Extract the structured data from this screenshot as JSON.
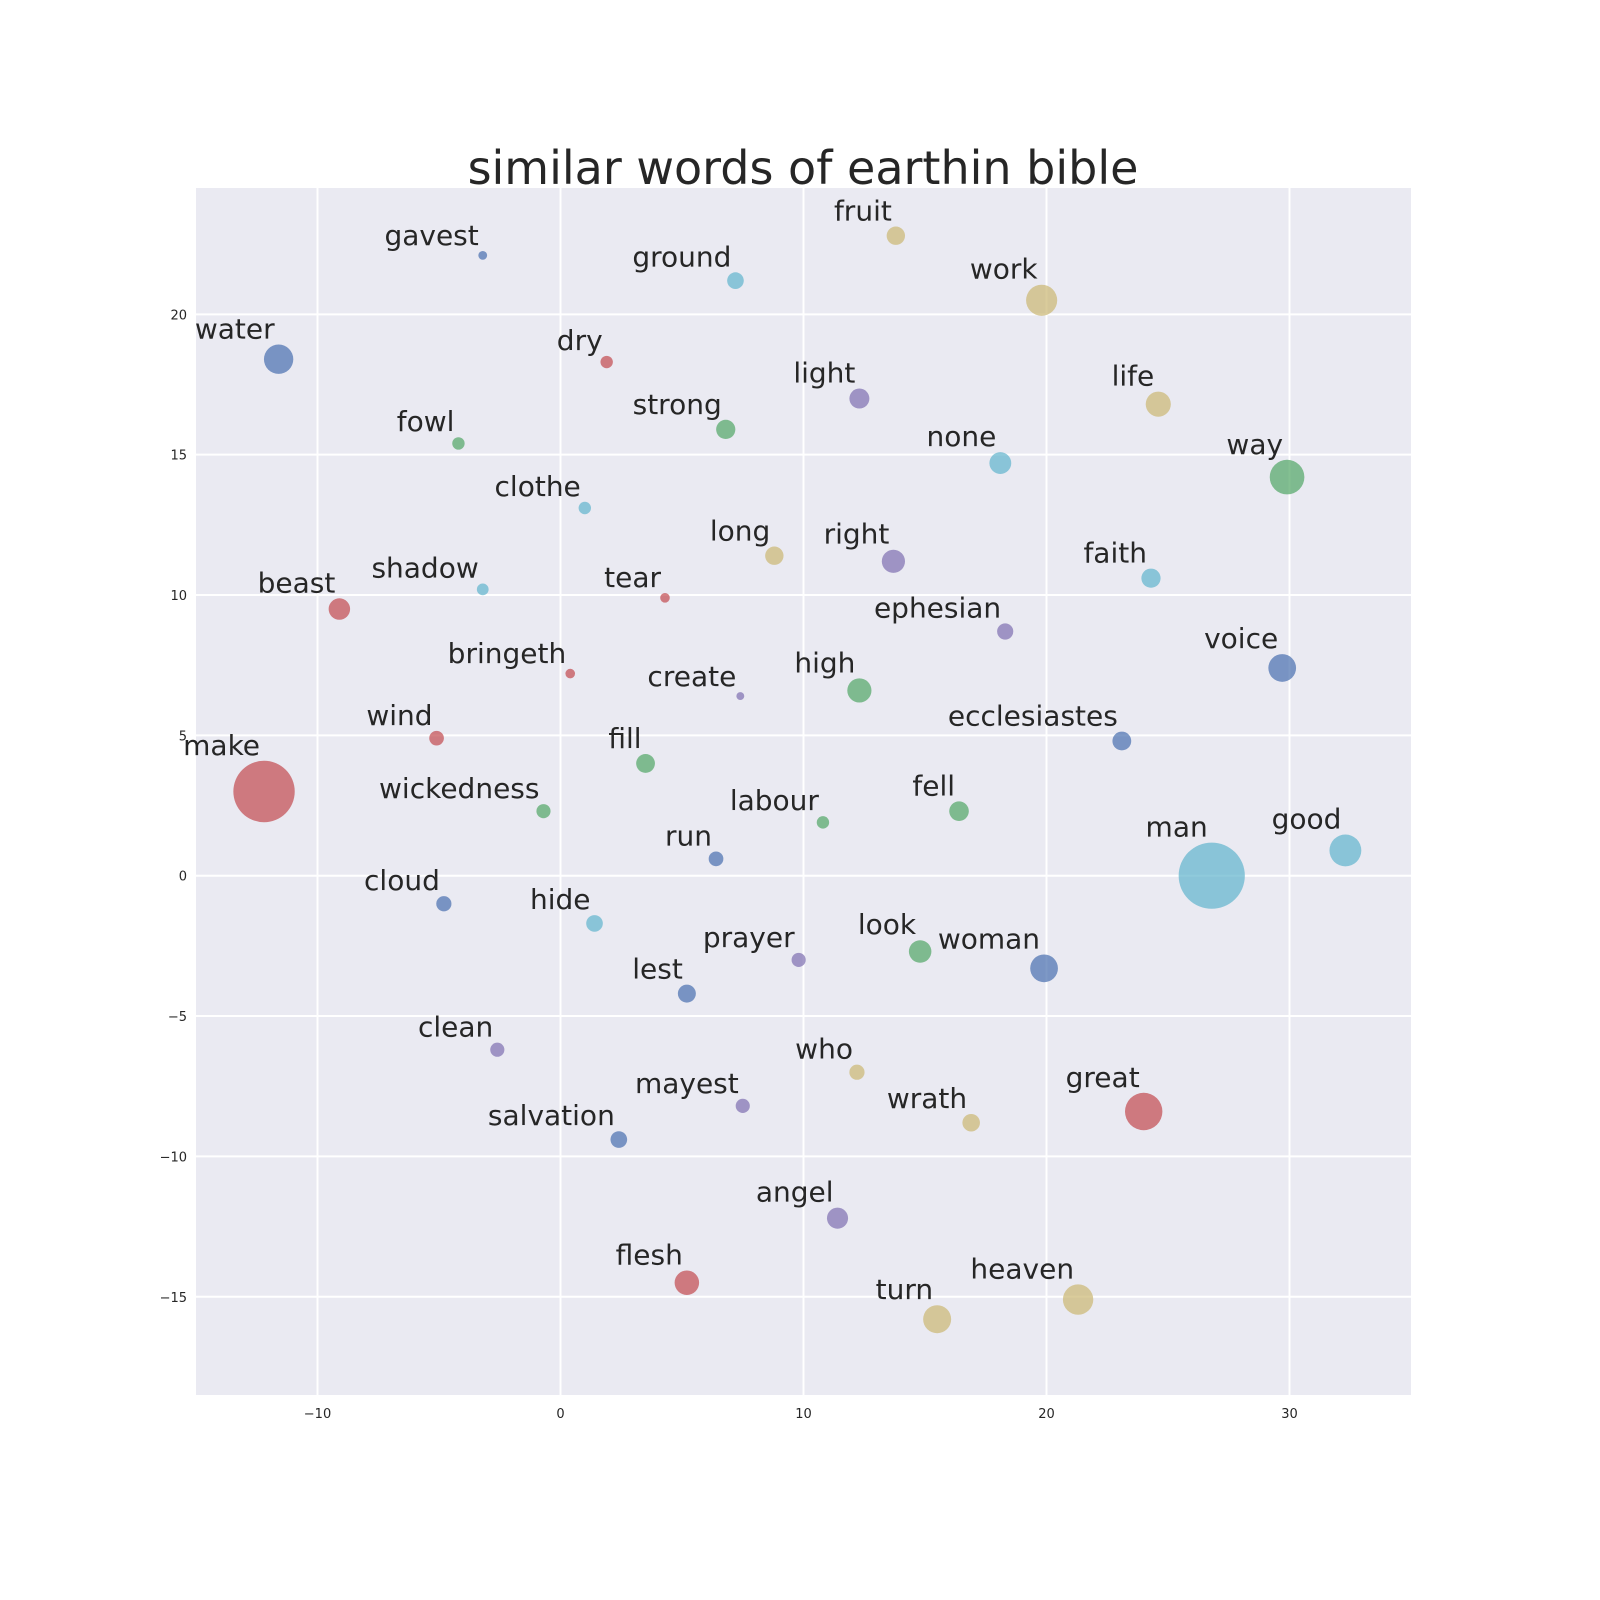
{
  "chart_data": {
    "type": "scatter",
    "title": "similar words of earthin bible",
    "xlabel": "",
    "ylabel": "",
    "xlim": [
      -15,
      35
    ],
    "ylim": [
      -18.5,
      24.5
    ],
    "xticks": [
      -10,
      0,
      10,
      20,
      30
    ],
    "yticks": [
      -15,
      -10,
      -5,
      0,
      5,
      10,
      15,
      20
    ],
    "xtick_labels": [
      "−10",
      "0",
      "10",
      "20",
      "30"
    ],
    "ytick_labels": [
      "−15",
      "−10",
      "−5",
      "0",
      "5",
      "10",
      "15",
      "20"
    ],
    "grid": true,
    "legend": "none",
    "colors": {
      "background": "#eaeaf2",
      "grid": "#ffffff",
      "blue": "#4c72b0",
      "green": "#55a868",
      "red": "#c44e52",
      "purple": "#8172b2",
      "yellow": "#ccb974",
      "cyan": "#64b5cd"
    },
    "points": [
      {
        "label": "gavest",
        "x": -3.2,
        "y": 22.1,
        "size": 0.5,
        "color": "blue"
      },
      {
        "label": "ground",
        "x": 7.2,
        "y": 21.2,
        "size": 1.8,
        "color": "cyan"
      },
      {
        "label": "fruit",
        "x": 13.8,
        "y": 22.8,
        "size": 2.2,
        "color": "yellow"
      },
      {
        "label": "work",
        "x": 19.8,
        "y": 20.5,
        "size": 6.3,
        "color": "yellow"
      },
      {
        "label": "water",
        "x": -11.6,
        "y": 18.4,
        "size": 5.6,
        "color": "blue"
      },
      {
        "label": "dry",
        "x": 1.9,
        "y": 18.3,
        "size": 1.0,
        "color": "red"
      },
      {
        "label": "light",
        "x": 12.3,
        "y": 17.0,
        "size": 2.6,
        "color": "purple"
      },
      {
        "label": "life",
        "x": 24.6,
        "y": 16.8,
        "size": 4.1,
        "color": "yellow"
      },
      {
        "label": "fowl",
        "x": -4.2,
        "y": 15.4,
        "size": 1.0,
        "color": "green"
      },
      {
        "label": "strong",
        "x": 6.8,
        "y": 15.9,
        "size": 2.4,
        "color": "green"
      },
      {
        "label": "none",
        "x": 18.1,
        "y": 14.7,
        "size": 3.1,
        "color": "cyan"
      },
      {
        "label": "way",
        "x": 29.9,
        "y": 14.2,
        "size": 7.8,
        "color": "green"
      },
      {
        "label": "clothe",
        "x": 1.0,
        "y": 13.1,
        "size": 1.0,
        "color": "cyan"
      },
      {
        "label": "long",
        "x": 8.8,
        "y": 11.4,
        "size": 2.2,
        "color": "yellow"
      },
      {
        "label": "right",
        "x": 13.7,
        "y": 11.2,
        "size": 3.5,
        "color": "purple"
      },
      {
        "label": "faith",
        "x": 24.3,
        "y": 10.6,
        "size": 2.4,
        "color": "cyan"
      },
      {
        "label": "shadow",
        "x": -3.2,
        "y": 10.2,
        "size": 0.9,
        "color": "cyan"
      },
      {
        "label": "tear",
        "x": 4.3,
        "y": 9.9,
        "size": 0.6,
        "color": "red"
      },
      {
        "label": "beast",
        "x": -9.1,
        "y": 9.5,
        "size": 3.0,
        "color": "red"
      },
      {
        "label": "ephesian",
        "x": 18.3,
        "y": 8.7,
        "size": 1.7,
        "color": "purple"
      },
      {
        "label": "voice",
        "x": 29.7,
        "y": 7.4,
        "size": 5.0,
        "color": "blue"
      },
      {
        "label": "bringeth",
        "x": 0.4,
        "y": 7.2,
        "size": 0.6,
        "color": "red"
      },
      {
        "label": "create",
        "x": 7.4,
        "y": 6.4,
        "size": 0.4,
        "color": "purple"
      },
      {
        "label": "high",
        "x": 12.3,
        "y": 6.6,
        "size": 3.8,
        "color": "green"
      },
      {
        "label": "wind",
        "x": -5.1,
        "y": 4.9,
        "size": 1.4,
        "color": "red"
      },
      {
        "label": "ecclesiastes",
        "x": 23.1,
        "y": 4.8,
        "size": 2.3,
        "color": "blue"
      },
      {
        "label": "fill",
        "x": 3.5,
        "y": 4.0,
        "size": 2.3,
        "color": "green"
      },
      {
        "label": "make",
        "x": -12.2,
        "y": 3.0,
        "size": 24.5,
        "color": "red"
      },
      {
        "label": "wickedness",
        "x": -0.7,
        "y": 2.3,
        "size": 1.3,
        "color": "green"
      },
      {
        "label": "labour",
        "x": 10.8,
        "y": 1.9,
        "size": 1.0,
        "color": "green"
      },
      {
        "label": "fell",
        "x": 16.4,
        "y": 2.3,
        "size": 2.5,
        "color": "green"
      },
      {
        "label": "good",
        "x": 32.3,
        "y": 0.9,
        "size": 6.6,
        "color": "cyan"
      },
      {
        "label": "run",
        "x": 6.4,
        "y": 0.6,
        "size": 1.4,
        "color": "blue"
      },
      {
        "label": "man",
        "x": 26.8,
        "y": 0.0,
        "size": 28.5,
        "color": "cyan"
      },
      {
        "label": "cloud",
        "x": -4.8,
        "y": -1.0,
        "size": 1.5,
        "color": "blue"
      },
      {
        "label": "hide",
        "x": 1.4,
        "y": -1.7,
        "size": 1.8,
        "color": "cyan"
      },
      {
        "label": "prayer",
        "x": 9.8,
        "y": -3.0,
        "size": 1.3,
        "color": "purple"
      },
      {
        "label": "look",
        "x": 14.8,
        "y": -2.7,
        "size": 3.3,
        "color": "green"
      },
      {
        "label": "woman",
        "x": 19.9,
        "y": -3.3,
        "size": 5.0,
        "color": "blue"
      },
      {
        "label": "lest",
        "x": 5.2,
        "y": -4.2,
        "size": 2.1,
        "color": "blue"
      },
      {
        "label": "clean",
        "x": -2.6,
        "y": -6.2,
        "size": 1.3,
        "color": "purple"
      },
      {
        "label": "who",
        "x": 12.2,
        "y": -7.0,
        "size": 1.5,
        "color": "yellow"
      },
      {
        "label": "mayest",
        "x": 7.5,
        "y": -8.2,
        "size": 1.3,
        "color": "purple"
      },
      {
        "label": "great",
        "x": 24.0,
        "y": -8.4,
        "size": 9.1,
        "color": "red"
      },
      {
        "label": "wrath",
        "x": 16.9,
        "y": -8.8,
        "size": 2.0,
        "color": "yellow"
      },
      {
        "label": "salvation",
        "x": 2.4,
        "y": -9.4,
        "size": 1.8,
        "color": "blue"
      },
      {
        "label": "angel",
        "x": 11.4,
        "y": -12.2,
        "size": 2.9,
        "color": "purple"
      },
      {
        "label": "flesh",
        "x": 5.2,
        "y": -14.5,
        "size": 3.9,
        "color": "red"
      },
      {
        "label": "heaven",
        "x": 21.3,
        "y": -15.1,
        "size": 6.0,
        "color": "yellow"
      },
      {
        "label": "turn",
        "x": 15.5,
        "y": -15.8,
        "size": 5.1,
        "color": "yellow"
      }
    ]
  }
}
